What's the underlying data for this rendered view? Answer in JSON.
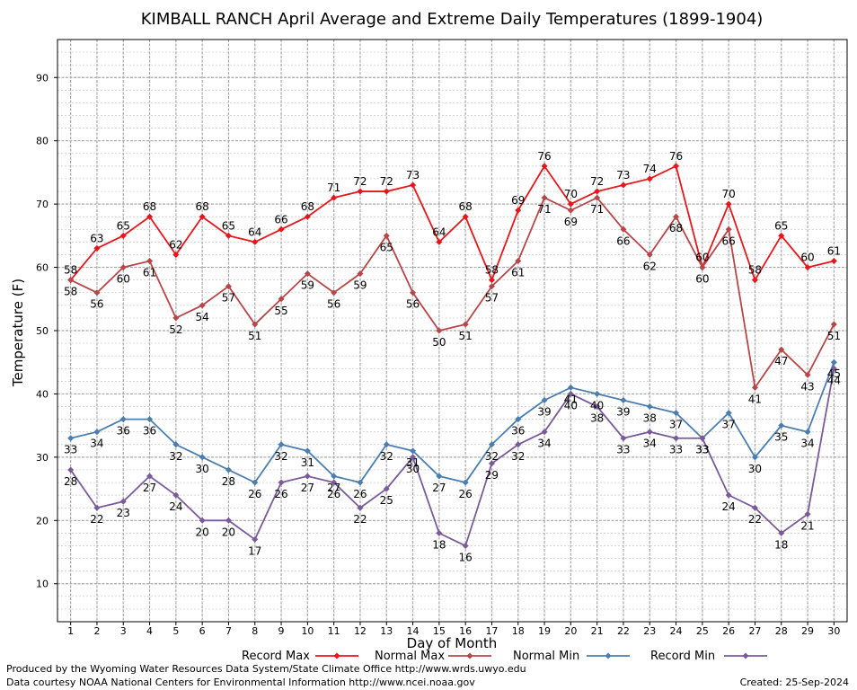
{
  "chart_data": {
    "type": "line",
    "title": "KIMBALL RANCH April Average and Extreme Daily Temperatures (1899-1904)",
    "xlabel": "Day of Month",
    "ylabel": "Temperature (F)",
    "x": [
      1,
      2,
      3,
      4,
      5,
      6,
      7,
      8,
      9,
      10,
      11,
      12,
      13,
      14,
      15,
      16,
      17,
      18,
      19,
      20,
      21,
      22,
      23,
      24,
      25,
      26,
      27,
      28,
      29,
      30
    ],
    "xlim": [
      0.5,
      30.5
    ],
    "ylim": [
      4,
      96
    ],
    "yticks": [
      10,
      20,
      30,
      40,
      50,
      60,
      70,
      80,
      90
    ],
    "grid": true,
    "legend_position": "bottom",
    "series": [
      {
        "name": "Record Max",
        "color": "#e8161a",
        "values": [
          58,
          63,
          65,
          68,
          62,
          68,
          65,
          64,
          66,
          68,
          71,
          72,
          72,
          73,
          64,
          68,
          58,
          69,
          76,
          70,
          72,
          73,
          74,
          76,
          60,
          70,
          58,
          65,
          60,
          61
        ]
      },
      {
        "name": "Normal Max",
        "color": "#b84648",
        "values": [
          58,
          56,
          60,
          61,
          52,
          54,
          57,
          51,
          55,
          59,
          56,
          59,
          65,
          56,
          50,
          51,
          57,
          61,
          71,
          69,
          71,
          66,
          62,
          68,
          60,
          66,
          41,
          47,
          43,
          51
        ]
      },
      {
        "name": "Normal Min",
        "color": "#4a7eb0",
        "values": [
          33,
          34,
          36,
          36,
          32,
          30,
          28,
          26,
          32,
          31,
          27,
          26,
          32,
          31,
          27,
          26,
          32,
          36,
          39,
          41,
          40,
          39,
          38,
          37,
          33,
          37,
          30,
          35,
          34,
          45
        ]
      },
      {
        "name": "Record Min",
        "color": "#7a5a9a",
        "values": [
          28,
          22,
          23,
          27,
          24,
          20,
          20,
          17,
          26,
          27,
          26,
          22,
          25,
          30,
          18,
          16,
          29,
          32,
          34,
          40,
          38,
          33,
          34,
          33,
          33,
          24,
          22,
          18,
          21,
          44
        ]
      }
    ]
  },
  "footer": {
    "line1": "Produced by the Wyoming Water Resources Data System/State Climate Office http://www.wrds.uwyo.edu",
    "line2": "Data courtesy NOAA National Centers for Environmental Information http://www.ncei.noaa.gov",
    "created": "Created:  25-Sep-2024"
  }
}
